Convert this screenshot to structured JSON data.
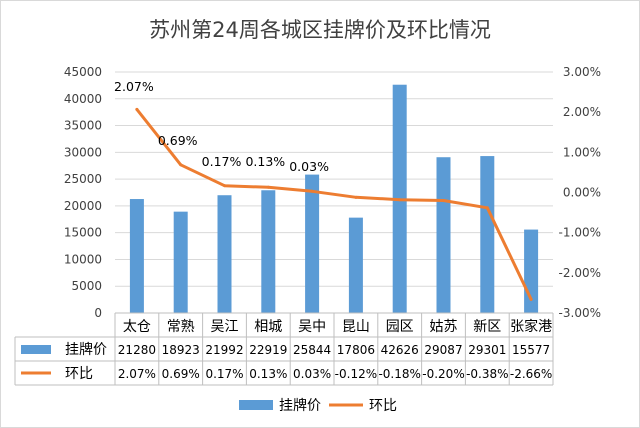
{
  "chart_data": {
    "type": "bar+line",
    "title": "苏州第24周各城区挂牌价及环比情况",
    "categories": [
      "太仓",
      "常熟",
      "吴江",
      "相城",
      "吴中",
      "昆山",
      "园区",
      "姑苏",
      "新区",
      "张家港"
    ],
    "series": [
      {
        "name": "挂牌价",
        "kind": "bar",
        "axis": "left",
        "color": "#5B9BD5",
        "values": [
          21280,
          18923,
          21992,
          22919,
          25844,
          17806,
          42626,
          29087,
          29301,
          15577
        ],
        "labels": [
          "21280",
          "18923",
          "21992",
          "22919",
          "25844",
          "17806",
          "42626",
          "29087",
          "29301",
          "15577"
        ]
      },
      {
        "name": "环比",
        "kind": "line",
        "axis": "right",
        "color": "#ED7D31",
        "values": [
          2.07,
          0.69,
          0.17,
          0.13,
          0.03,
          -0.12,
          -0.18,
          -0.2,
          -0.38,
          -2.66
        ],
        "labels": [
          "2.07%",
          "0.69%",
          "0.17%",
          "0.13%",
          "0.03%",
          "-0.12%",
          "-0.18%",
          "-0.20%",
          "-0.38%",
          "-2.66%"
        ]
      }
    ],
    "data_labels": [
      "2.07%",
      "0.69%",
      "0.17%",
      "0.13%",
      "0.03%"
    ],
    "y_left": {
      "min": 0,
      "max": 45000,
      "ticks": [
        "0",
        "5000",
        "10000",
        "15000",
        "20000",
        "25000",
        "30000",
        "35000",
        "40000",
        "45000"
      ]
    },
    "y_right": {
      "min": -3,
      "max": 3,
      "ticks": [
        "-3.00%",
        "-2.00%",
        "-1.00%",
        "0.00%",
        "1.00%",
        "2.00%",
        "3.00%"
      ]
    },
    "grid": true,
    "data_table": true,
    "legend_position": "bottom"
  }
}
